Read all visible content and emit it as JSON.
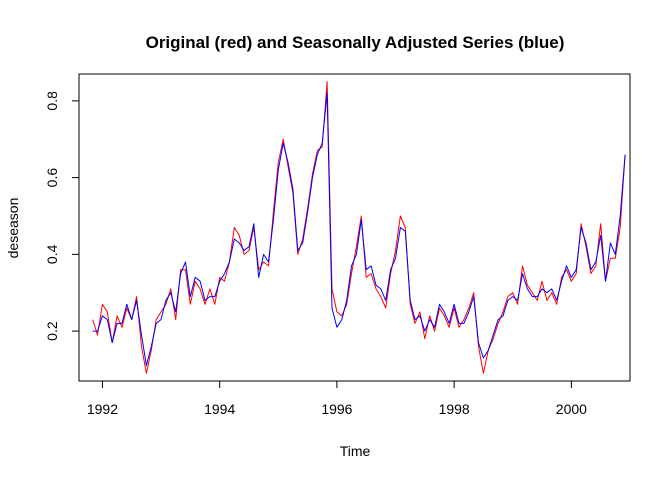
{
  "chart_data": {
    "type": "line",
    "title": "Original (red) and Seasonally Adjusted Series (blue)",
    "xlabel": "Time",
    "ylabel": "deseason",
    "xlim": [
      1991.6,
      2001.0
    ],
    "ylim": [
      0.07,
      0.87
    ],
    "x_ticks": [
      1992,
      1994,
      1996,
      1998,
      2000
    ],
    "y_ticks": [
      0.2,
      0.4,
      0.6,
      0.8
    ],
    "x_tick_labels": [
      "1992",
      "1994",
      "1996",
      "1998",
      "2000"
    ],
    "y_tick_labels": [
      "0.2",
      "0.4",
      "0.6",
      "0.8"
    ],
    "grid": false,
    "legend": "none",
    "x_start": 1991.833,
    "x_step": 0.08333,
    "series": [
      {
        "color": "#ff0000",
        "values": [
          0.23,
          0.19,
          0.27,
          0.25,
          0.17,
          0.24,
          0.21,
          0.26,
          0.23,
          0.29,
          0.16,
          0.09,
          0.15,
          0.23,
          0.25,
          0.27,
          0.31,
          0.23,
          0.36,
          0.36,
          0.27,
          0.33,
          0.31,
          0.27,
          0.31,
          0.27,
          0.34,
          0.33,
          0.38,
          0.47,
          0.45,
          0.4,
          0.41,
          0.47,
          0.36,
          0.38,
          0.37,
          0.51,
          0.64,
          0.7,
          0.63,
          0.56,
          0.4,
          0.44,
          0.52,
          0.61,
          0.67,
          0.68,
          0.85,
          0.31,
          0.25,
          0.24,
          0.27,
          0.35,
          0.42,
          0.5,
          0.34,
          0.35,
          0.31,
          0.29,
          0.26,
          0.35,
          0.41,
          0.5,
          0.47,
          0.27,
          0.22,
          0.25,
          0.18,
          0.24,
          0.2,
          0.26,
          0.24,
          0.21,
          0.26,
          0.21,
          0.23,
          0.26,
          0.3,
          0.16,
          0.09,
          0.15,
          0.18,
          0.22,
          0.25,
          0.29,
          0.3,
          0.27,
          0.37,
          0.32,
          0.3,
          0.28,
          0.33,
          0.28,
          0.3,
          0.27,
          0.34,
          0.36,
          0.33,
          0.35,
          0.48,
          0.42,
          0.35,
          0.37,
          0.48,
          0.33,
          0.39,
          0.39,
          0.47,
          0.66
        ]
      },
      {
        "color": "#0000ff",
        "values": [
          0.2,
          0.2,
          0.24,
          0.23,
          0.17,
          0.22,
          0.22,
          0.27,
          0.23,
          0.28,
          0.19,
          0.11,
          0.16,
          0.22,
          0.23,
          0.28,
          0.3,
          0.25,
          0.35,
          0.38,
          0.29,
          0.34,
          0.33,
          0.28,
          0.29,
          0.29,
          0.33,
          0.35,
          0.38,
          0.44,
          0.43,
          0.41,
          0.42,
          0.48,
          0.34,
          0.4,
          0.38,
          0.49,
          0.62,
          0.69,
          0.64,
          0.57,
          0.41,
          0.43,
          0.51,
          0.6,
          0.66,
          0.69,
          0.82,
          0.26,
          0.21,
          0.23,
          0.28,
          0.37,
          0.4,
          0.49,
          0.36,
          0.37,
          0.32,
          0.31,
          0.28,
          0.36,
          0.39,
          0.47,
          0.46,
          0.28,
          0.23,
          0.24,
          0.2,
          0.23,
          0.21,
          0.27,
          0.25,
          0.22,
          0.27,
          0.22,
          0.22,
          0.25,
          0.29,
          0.17,
          0.13,
          0.15,
          0.19,
          0.23,
          0.24,
          0.28,
          0.29,
          0.28,
          0.35,
          0.31,
          0.29,
          0.29,
          0.31,
          0.3,
          0.31,
          0.28,
          0.33,
          0.37,
          0.34,
          0.36,
          0.47,
          0.43,
          0.36,
          0.38,
          0.45,
          0.33,
          0.43,
          0.4,
          0.5,
          0.66
        ]
      }
    ]
  }
}
